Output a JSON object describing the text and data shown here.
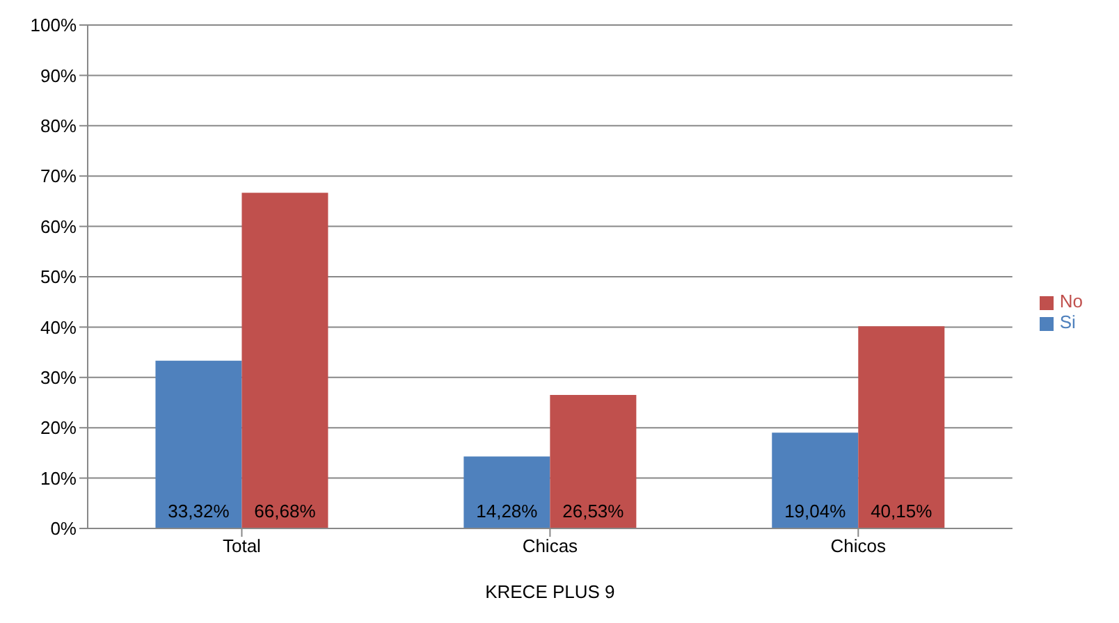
{
  "chart_data": {
    "type": "bar",
    "xlabel": "KRECE PLUS 9",
    "categories": [
      "Total",
      "Chicas",
      "Chicos"
    ],
    "series": [
      {
        "name": "Si",
        "color": "#4f81bd",
        "values": [
          33.32,
          14.28,
          19.04
        ],
        "value_labels": [
          "33,32%",
          "14,28%",
          "19,04%"
        ]
      },
      {
        "name": "No",
        "color": "#c0504d",
        "values": [
          66.68,
          26.53,
          40.15
        ],
        "value_labels": [
          "66,68%",
          "26,53%",
          "40,15%"
        ]
      }
    ],
    "ylim": [
      0,
      100
    ],
    "yticks": [
      {
        "value": 0,
        "label": "0%"
      },
      {
        "value": 10,
        "label": "10%"
      },
      {
        "value": 20,
        "label": "20%"
      },
      {
        "value": 30,
        "label": "30%"
      },
      {
        "value": 40,
        "label": "40%"
      },
      {
        "value": 50,
        "label": "50%"
      },
      {
        "value": 60,
        "label": "60%"
      },
      {
        "value": 70,
        "label": "70%"
      },
      {
        "value": 80,
        "label": "80%"
      },
      {
        "value": 90,
        "label": "90%"
      },
      {
        "value": 100,
        "label": "100%"
      }
    ],
    "grid": "y",
    "legend": "right"
  }
}
